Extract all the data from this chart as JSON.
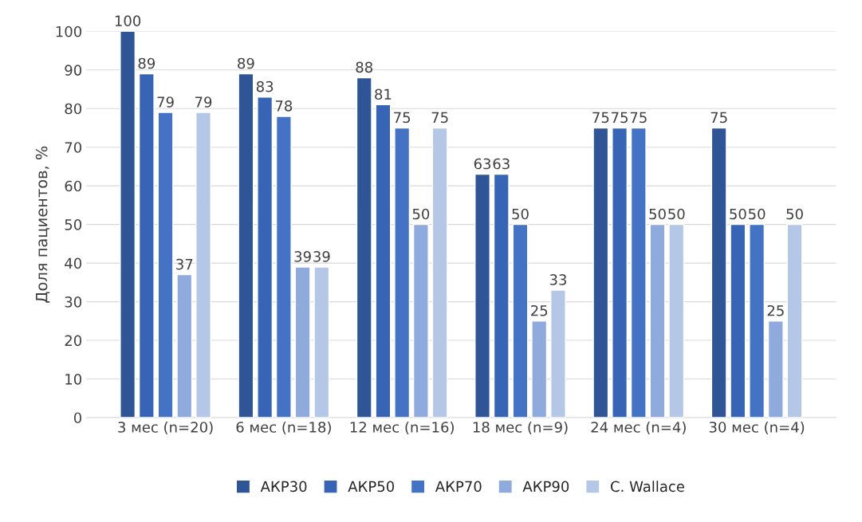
{
  "chart_data": {
    "type": "bar",
    "ylabel": "Доля пациентов, %",
    "categories": [
      "3 мес (n=20)",
      "6 мес (n=18)",
      "12 мес (n=16)",
      "18 мес (n=9)",
      "24 мес (n=4)",
      "30 мес (n=4)"
    ],
    "series": [
      {
        "name": "АКР30",
        "color": "#2f5597",
        "values": [
          100,
          89,
          88,
          63,
          75,
          75
        ],
        "value_labels": [
          "100",
          "89",
          "88",
          "63",
          "75",
          "75"
        ]
      },
      {
        "name": "АКР50",
        "color": "#3764b4",
        "values": [
          89,
          83,
          81,
          63,
          75,
          50
        ],
        "value_labels": [
          "89",
          "83",
          "81",
          "63",
          "75",
          "50"
        ]
      },
      {
        "name": "АКР70",
        "color": "#4472c4",
        "values": [
          79,
          78,
          75,
          50,
          75,
          50
        ],
        "value_labels": [
          "79",
          "78",
          "75",
          "50",
          "75",
          "50"
        ]
      },
      {
        "name": "АКР90",
        "color": "#8faadc",
        "values": [
          37,
          39,
          50,
          25,
          50,
          25
        ],
        "value_labels": [
          "37",
          "39",
          "50",
          "25",
          "50",
          "25"
        ]
      },
      {
        "name": "C. Wallace",
        "color": "#b4c7e7",
        "values": [
          79,
          39,
          75,
          33,
          50,
          50
        ],
        "value_labels": [
          "79",
          "39",
          "75",
          "33",
          "50",
          "50"
        ]
      }
    ],
    "ylim": [
      0,
      100
    ],
    "yticks": [
      0,
      10,
      20,
      30,
      40,
      50,
      60,
      70,
      80,
      90,
      100
    ],
    "grid": "y",
    "legend": "bottom"
  }
}
